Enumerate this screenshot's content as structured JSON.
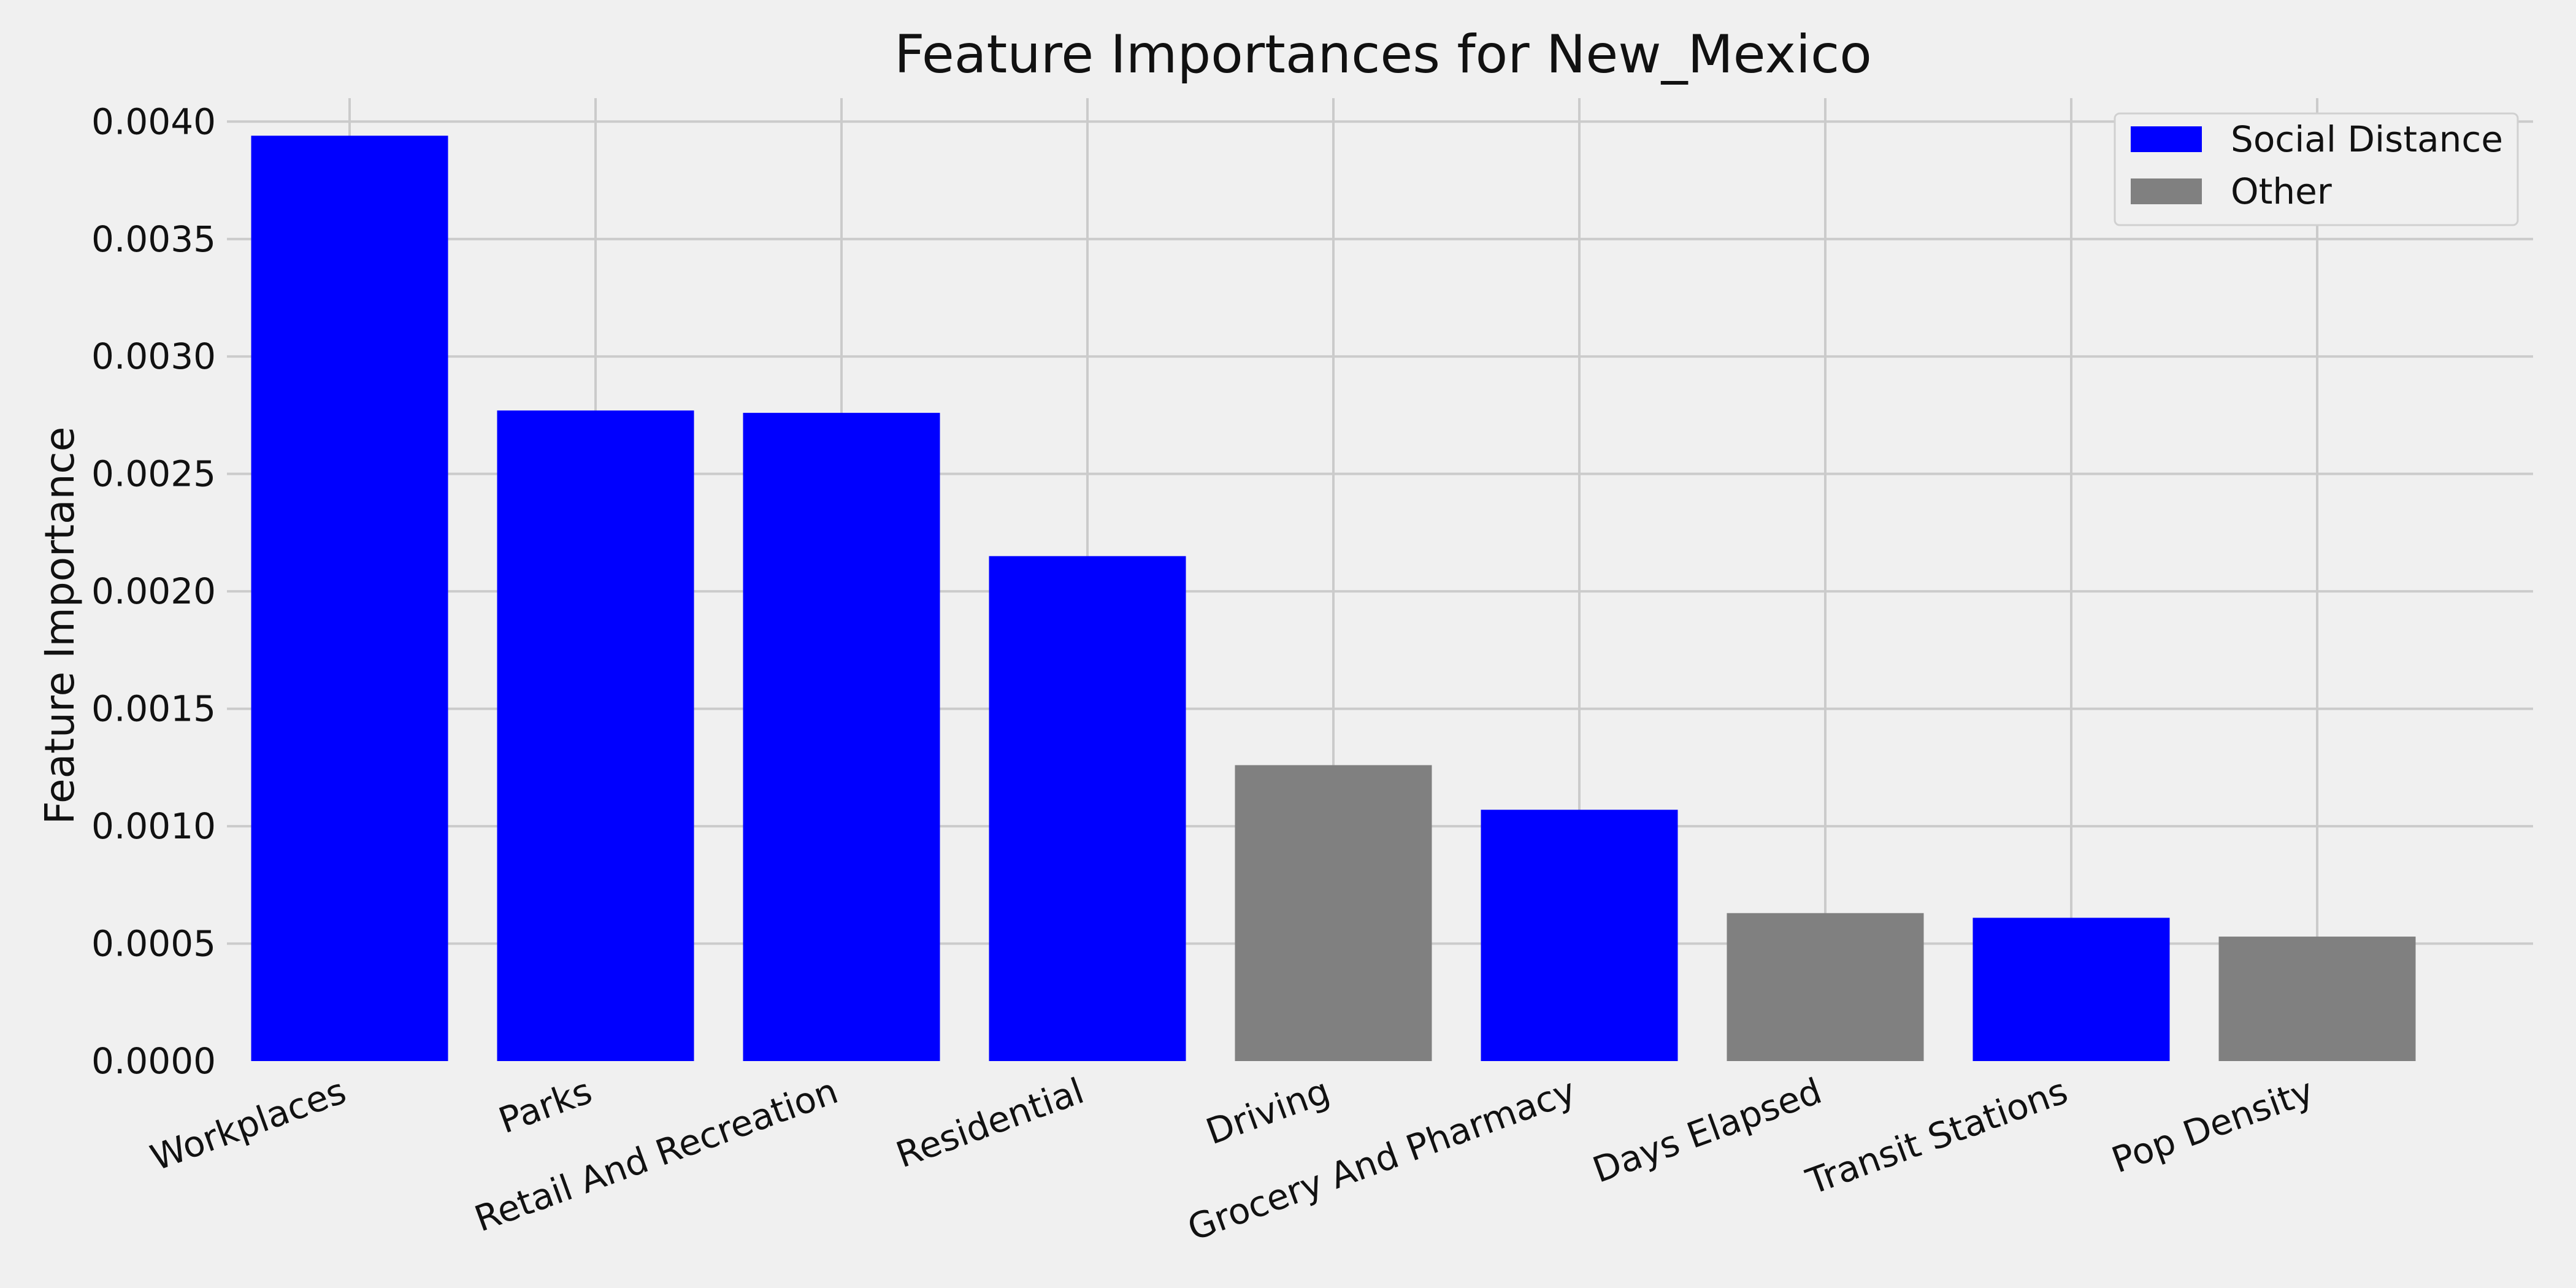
{
  "chart_data": {
    "type": "bar",
    "title": "Feature Importances for New_Mexico",
    "xlabel": "",
    "ylabel": "Feature Importance",
    "ylim": [
      0,
      0.0041
    ],
    "yticks": [
      "0.0000",
      "0.0005",
      "0.0010",
      "0.0015",
      "0.0020",
      "0.0025",
      "0.0030",
      "0.0035",
      "0.0040"
    ],
    "categories": [
      "Workplaces",
      "Parks",
      "Retail And Recreation",
      "Residential",
      "Driving",
      "Grocery And Pharmacy",
      "Days Elapsed",
      "Transit Stations",
      "Pop Density"
    ],
    "values": [
      0.00394,
      0.00277,
      0.00276,
      0.00215,
      0.00126,
      0.00107,
      0.00063,
      0.00061,
      0.00053
    ],
    "groups": [
      "Social Distance",
      "Social Distance",
      "Social Distance",
      "Social Distance",
      "Other",
      "Social Distance",
      "Other",
      "Social Distance",
      "Other"
    ],
    "legend": [
      {
        "name": "Social Distance",
        "color": "#0000ff"
      },
      {
        "name": "Other",
        "color": "#808080"
      }
    ],
    "legend_position": "top-right",
    "grid": true
  }
}
